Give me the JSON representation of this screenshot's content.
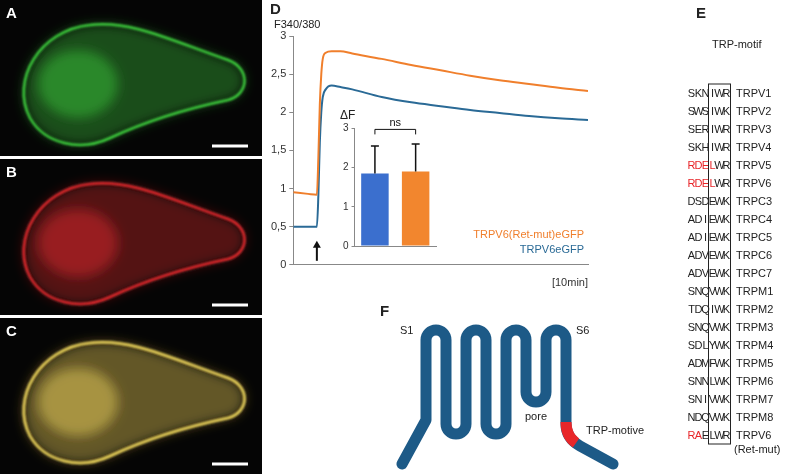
{
  "micrographs": [
    {
      "panel": "A",
      "colors": [
        "#3ad13a"
      ]
    },
    {
      "panel": "B",
      "colors": [
        "#e8262a"
      ]
    },
    {
      "panel": "C",
      "colors": [
        "#3ad13a",
        "#e8262a"
      ]
    }
  ],
  "chart_data": [
    {
      "panel": "D",
      "type": "line",
      "ylabel": "F340/380",
      "xlabel": "[10min]",
      "x": [
        0,
        0.5,
        0.8,
        0.85,
        0.9,
        0.95,
        1.0,
        1.1,
        1.3,
        1.6,
        2,
        3,
        4,
        5,
        6,
        7,
        8,
        9,
        10
      ],
      "xlim": [
        0,
        10
      ],
      "ylim": [
        0,
        3
      ],
      "yticks": [
        0,
        {
          "value": 0.5,
          "label": "0,5"
        },
        1,
        {
          "value": 1.5,
          "label": "1,5"
        },
        2,
        {
          "value": 2.5,
          "label": "2,5"
        },
        3
      ],
      "tick_labels": "y",
      "legend": "lower right",
      "arrow_x": 0.8,
      "series": [
        {
          "name": "TRPV6(Ret-mut)eGFP",
          "color": "#f07f2c",
          "values": [
            0.95,
            0.93,
            0.92,
            1.4,
            2.1,
            2.5,
            2.7,
            2.78,
            2.8,
            2.8,
            2.77,
            2.7,
            2.62,
            2.55,
            2.48,
            2.42,
            2.37,
            2.32,
            2.28
          ]
        },
        {
          "name": "TRPV6eGFP",
          "color": "#2a6a96",
          "values": [
            0.5,
            0.5,
            0.5,
            0.9,
            1.6,
            2.0,
            2.2,
            2.3,
            2.35,
            2.33,
            2.3,
            2.2,
            2.13,
            2.08,
            2.03,
            1.99,
            1.95,
            1.92,
            1.9
          ]
        }
      ]
    },
    {
      "type": "bar",
      "title": "ΔF",
      "categories": [
        null,
        null
      ],
      "values": [
        1.85,
        1.9
      ],
      "errors": [
        0.7,
        0.7
      ],
      "colors": [
        "#3b6fce",
        "#f2862e"
      ],
      "ylim": [
        0,
        3
      ],
      "yticks": [
        0,
        1,
        2,
        3
      ],
      "annotation": "ns"
    }
  ],
  "alignment": {
    "panel": "E",
    "title": "TRP-motif",
    "box_columns": [
      4,
      6
    ],
    "highlight_color": "#e8262a",
    "rows": [
      {
        "seq": "SKNIWR",
        "name": "TRPV1"
      },
      {
        "seq": "SWSIWK",
        "name": "TRPV2"
      },
      {
        "seq": "SERIWR",
        "name": "TRPV3"
      },
      {
        "seq": "SKHIWR",
        "name": "TRPV4"
      },
      {
        "seq": "RDELWR",
        "red": "RDEL",
        "name": "TRPV5"
      },
      {
        "seq": "RDELWR",
        "red": "RDEL",
        "name": "TRPV6"
      },
      {
        "seq": "DSDEWK",
        "name": "TRPC3"
      },
      {
        "seq": "ADIEWK",
        "name": "TRPC4"
      },
      {
        "seq": "ADIEWK",
        "name": "TRPC5"
      },
      {
        "seq": "ADVEWK",
        "name": "TRPC6"
      },
      {
        "seq": "ADVEWK",
        "name": "TRPC7"
      },
      {
        "seq": "SNQVWK",
        "name": "TRPM1"
      },
      {
        "seq": "TDQIWK",
        "name": "TRPM2"
      },
      {
        "seq": "SNQVWK",
        "name": "TRPM3"
      },
      {
        "seq": "SDLYWK",
        "name": "TRPM4"
      },
      {
        "seq": "ADMFWK",
        "name": "TRPM5"
      },
      {
        "seq": "SNNLWK",
        "name": "TRPM6"
      },
      {
        "seq": "SNIVWK",
        "name": "TRPM7"
      },
      {
        "seq": "NDQVWK",
        "name": "TRPM8"
      },
      {
        "seq": "RAELWR",
        "red": "RA",
        "name": "TRPV6",
        "note": "(Ret-mut)"
      }
    ]
  },
  "diagram": {
    "panel": "F",
    "color": "#1d5a87",
    "motif_color": "#e8262a",
    "labels": {
      "first_helix": "S1",
      "last_helix": "S6",
      "loop": "pore",
      "motif": "TRP-motive"
    }
  }
}
